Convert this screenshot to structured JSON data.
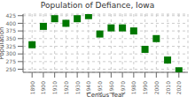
{
  "chart_data": {
    "type": "scatter",
    "title": "Population of Defiance, Iowa",
    "xlabel": "Census Year",
    "ylabel": "Population",
    "x": [
      1890,
      1900,
      1910,
      1920,
      1930,
      1940,
      1950,
      1960,
      1970,
      1980,
      1990,
      2000,
      2010,
      2020
    ],
    "values": [
      330,
      390,
      415,
      400,
      415,
      425,
      365,
      385,
      385,
      375,
      315,
      350,
      280,
      245
    ],
    "color": "#007700",
    "marker": "square",
    "xlim": [
      1882,
      2028
    ],
    "xticks": [
      1890,
      1900,
      1910,
      1920,
      1930,
      1940,
      1950,
      1960,
      1970,
      1980,
      1990,
      2000,
      2010,
      2020
    ],
    "ylim": [
      240,
      430
    ],
    "yticks": [
      250,
      275,
      300,
      325,
      350,
      375,
      400,
      425
    ],
    "grid": true
  }
}
